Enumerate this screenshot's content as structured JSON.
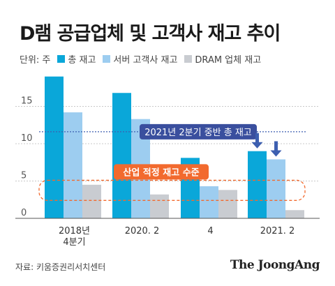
{
  "title": "D램 공급업체 및 고객사 재고 추이",
  "unit_label": "단위: 주",
  "source": "자료: 키움증권리서치센터",
  "logo": "The JoongAng",
  "colors": {
    "total": "#0aa7d9",
    "server": "#9dcdf0",
    "dram": "#c9ccd1",
    "avg_line": "#3d5fb0",
    "avg_label_bg": "#3a4f9e",
    "band": "#f26a2e",
    "arrow": "#3d5fb0"
  },
  "chart_data": {
    "type": "bar",
    "categories": [
      "2018년\n4분기",
      "2020. 2",
      "4",
      "2021. 2"
    ],
    "series": [
      {
        "name": "총 재고",
        "values": [
          19.0,
          16.8,
          8.1,
          9.0
        ]
      },
      {
        "name": "서버 고객사 재고",
        "values": [
          14.2,
          13.3,
          4.3,
          7.9
        ]
      },
      {
        "name": "DRAM 업체 재고",
        "values": [
          4.5,
          3.2,
          3.8,
          1.1
        ]
      }
    ],
    "yticks": [
      0,
      5,
      10,
      15
    ],
    "ylim": [
      0,
      20
    ],
    "reference_line": {
      "value": 11.6,
      "label": "2021년 2분기 중반 총 재고"
    },
    "band": {
      "from": 2.4,
      "to": 5.1,
      "label": "산업 적정 재고 수준"
    },
    "arrows_on_category": 3
  }
}
